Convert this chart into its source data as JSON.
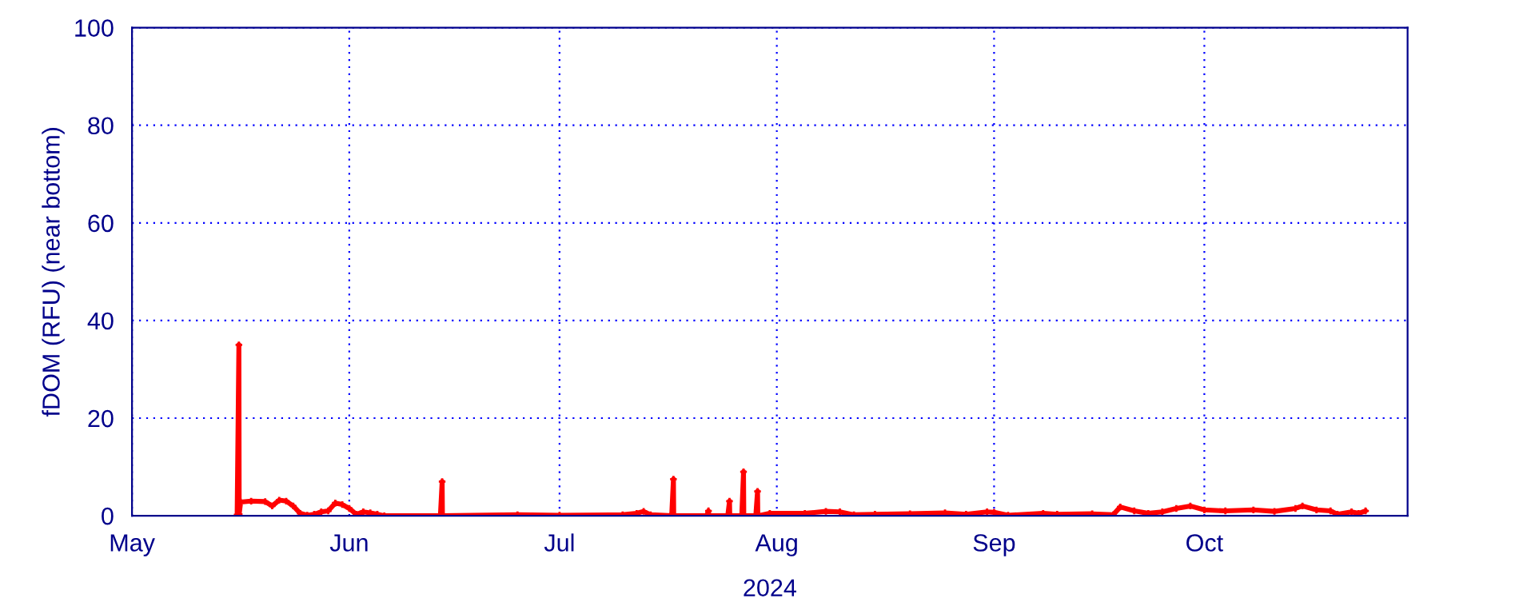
{
  "chart_data": {
    "type": "line",
    "ylabel": "fDOM (RFU) (near bottom)",
    "xlabel": "2024",
    "xlim": [
      "2024-05-01",
      "2024-10-30"
    ],
    "xticks": [
      {
        "value": "2024-05-01",
        "label": "May"
      },
      {
        "value": "2024-06-01",
        "label": "Jun"
      },
      {
        "value": "2024-07-01",
        "label": "Jul"
      },
      {
        "value": "2024-08-01",
        "label": "Aug"
      },
      {
        "value": "2024-09-01",
        "label": "Sep"
      },
      {
        "value": "2024-10-01",
        "label": "Oct"
      }
    ],
    "ylim": [
      0,
      100
    ],
    "yticks": [
      0,
      20,
      40,
      60,
      80,
      100
    ],
    "grid": true,
    "marker": "cross",
    "line_style": "solid",
    "series": [
      {
        "color": "#ff0000",
        "x": [
          "2024-05-16T00:00",
          "2024-05-16T06:00",
          "2024-05-16T07:00",
          "2024-05-16T12:00",
          "2024-05-18",
          "2024-05-20",
          "2024-05-21",
          "2024-05-22",
          "2024-05-23",
          "2024-05-24",
          "2024-05-25",
          "2024-05-26",
          "2024-05-27",
          "2024-05-28",
          "2024-05-29",
          "2024-05-30",
          "2024-05-31",
          "2024-06-01",
          "2024-06-02",
          "2024-06-03",
          "2024-06-04",
          "2024-06-05",
          "2024-06-06",
          "2024-06-14T00:00",
          "2024-06-14T06:00",
          "2024-06-14T07:00",
          "2024-06-25",
          "2024-07-01",
          "2024-07-10",
          "2024-07-12",
          "2024-07-13",
          "2024-07-14",
          "2024-07-17T00:00",
          "2024-07-17T06:00",
          "2024-07-17T07:00",
          "2024-07-22T00:00",
          "2024-07-22T06:00",
          "2024-07-22T07:00",
          "2024-07-25T00:00",
          "2024-07-25T06:00",
          "2024-07-25T07:00",
          "2024-07-27T00:00",
          "2024-07-27T06:00",
          "2024-07-27T07:00",
          "2024-07-29T00:00",
          "2024-07-29T06:00",
          "2024-07-29T07:00",
          "2024-07-31",
          "2024-08-05",
          "2024-08-08",
          "2024-08-10",
          "2024-08-12",
          "2024-08-15",
          "2024-08-20",
          "2024-08-25",
          "2024-08-28",
          "2024-08-31",
          "2024-09-01",
          "2024-09-03",
          "2024-09-08",
          "2024-09-10",
          "2024-09-15",
          "2024-09-18",
          "2024-09-19",
          "2024-09-21",
          "2024-09-23",
          "2024-09-25",
          "2024-09-27",
          "2024-09-29",
          "2024-10-01",
          "2024-10-04",
          "2024-10-08",
          "2024-10-11",
          "2024-10-14",
          "2024-10-15",
          "2024-10-17",
          "2024-10-19",
          "2024-10-20",
          "2024-10-22",
          "2024-10-23",
          "2024-10-24"
        ],
        "values": [
          0.2,
          35,
          0.3,
          2.8,
          3.0,
          2.9,
          2.0,
          3.2,
          3.0,
          2.0,
          0.5,
          0.1,
          0.3,
          0.8,
          1.0,
          2.6,
          2.3,
          1.5,
          0.3,
          0.8,
          0.6,
          0.3,
          0.0,
          0.0,
          7,
          0.0,
          0.2,
          0.1,
          0.2,
          0.5,
          0.9,
          0.2,
          0.0,
          7.5,
          0.0,
          0.0,
          1,
          0.0,
          0.0,
          3,
          0.0,
          0.0,
          9,
          0.0,
          0.0,
          5,
          0.0,
          0.5,
          0.5,
          0.9,
          0.8,
          0.2,
          0.3,
          0.4,
          0.6,
          0.3,
          0.8,
          0.7,
          0.1,
          0.5,
          0.3,
          0.4,
          0.2,
          1.8,
          1.0,
          0.5,
          0.8,
          1.5,
          2.0,
          1.2,
          1.0,
          1.2,
          0.9,
          1.5,
          2.0,
          1.2,
          1.0,
          0.3,
          0.8,
          0.5,
          1.0
        ]
      }
    ]
  }
}
